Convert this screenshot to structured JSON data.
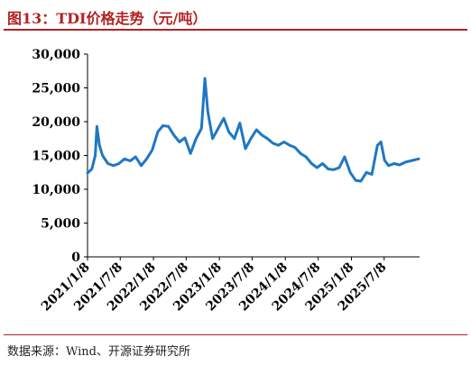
{
  "header": {
    "title": "图13：TDI价格走势（元/吨）"
  },
  "footer": {
    "source": "数据来源：Wind、开源证券研究所"
  },
  "colors": {
    "accent": "#b22222",
    "line": "#1f77c4"
  },
  "chart_data": {
    "type": "line",
    "title": "图13：TDI价格走势（元/吨）",
    "xlabel": "",
    "ylabel": "",
    "ylim": [
      0,
      30000
    ],
    "yticks": [
      0,
      5000,
      10000,
      15000,
      20000,
      25000,
      30000
    ],
    "ytick_labels": [
      "0",
      "5,000",
      "10,000",
      "15,000",
      "20,000",
      "25,000",
      "30,000"
    ],
    "xticks": [
      "2021-01-08",
      "2021-07-08",
      "2022-01-08",
      "2022-07-08",
      "2023-01-08",
      "2023-07-08",
      "2024-01-08",
      "2024-07-08",
      "2025-01-08",
      "2025-07-08"
    ],
    "xtick_labels": [
      "2021/1/8",
      "2021/7/8",
      "2022/1/8",
      "2022/7/8",
      "2023/1/8",
      "2023/7/8",
      "2024/1/8",
      "2024/7/8",
      "2025/1/8",
      "2025/7/8"
    ],
    "xlim": [
      "2021-01-08",
      "2026-01-20"
    ],
    "grid": false,
    "series": [
      {
        "points": [
          [
            "2021-01-08",
            12400
          ],
          [
            "2021-02-01",
            13000
          ],
          [
            "2021-02-20",
            15000
          ],
          [
            "2021-03-01",
            19300
          ],
          [
            "2021-03-15",
            16500
          ],
          [
            "2021-04-01",
            15000
          ],
          [
            "2021-05-01",
            13800
          ],
          [
            "2021-06-01",
            13500
          ],
          [
            "2021-07-01",
            13800
          ],
          [
            "2021-08-01",
            14500
          ],
          [
            "2021-09-01",
            14200
          ],
          [
            "2021-10-01",
            14800
          ],
          [
            "2021-11-01",
            13500
          ],
          [
            "2021-12-01",
            14500
          ],
          [
            "2022-01-01",
            15800
          ],
          [
            "2022-02-01",
            18500
          ],
          [
            "2022-03-01",
            19400
          ],
          [
            "2022-04-01",
            19300
          ],
          [
            "2022-05-01",
            18000
          ],
          [
            "2022-06-01",
            17000
          ],
          [
            "2022-07-01",
            17600
          ],
          [
            "2022-08-01",
            15300
          ],
          [
            "2022-09-01",
            17500
          ],
          [
            "2022-10-01",
            19000
          ],
          [
            "2022-10-20",
            26400
          ],
          [
            "2022-11-05",
            21500
          ],
          [
            "2022-12-01",
            17500
          ],
          [
            "2023-01-01",
            19000
          ],
          [
            "2023-02-01",
            20500
          ],
          [
            "2023-03-01",
            18500
          ],
          [
            "2023-04-01",
            17500
          ],
          [
            "2023-05-01",
            19800
          ],
          [
            "2023-06-01",
            16000
          ],
          [
            "2023-07-01",
            17500
          ],
          [
            "2023-08-01",
            18800
          ],
          [
            "2023-09-01",
            18000
          ],
          [
            "2023-10-01",
            17500
          ],
          [
            "2023-11-01",
            16800
          ],
          [
            "2023-12-01",
            16500
          ],
          [
            "2024-01-01",
            17000
          ],
          [
            "2024-02-01",
            16500
          ],
          [
            "2024-03-01",
            16200
          ],
          [
            "2024-04-01",
            15300
          ],
          [
            "2024-05-01",
            14800
          ],
          [
            "2024-06-01",
            13800
          ],
          [
            "2024-07-01",
            13200
          ],
          [
            "2024-08-01",
            13800
          ],
          [
            "2024-09-01",
            13000
          ],
          [
            "2024-10-01",
            12900
          ],
          [
            "2024-11-01",
            13200
          ],
          [
            "2024-12-01",
            14800
          ],
          [
            "2025-01-01",
            12500
          ],
          [
            "2025-02-01",
            11300
          ],
          [
            "2025-03-01",
            11200
          ],
          [
            "2025-04-01",
            12500
          ],
          [
            "2025-05-01",
            12200
          ],
          [
            "2025-06-01",
            16500
          ],
          [
            "2025-06-20",
            17000
          ],
          [
            "2025-07-10",
            14300
          ],
          [
            "2025-08-01",
            13500
          ],
          [
            "2025-09-01",
            13800
          ],
          [
            "2025-10-01",
            13600
          ],
          [
            "2025-11-01",
            14000
          ],
          [
            "2025-12-01",
            14200
          ],
          [
            "2026-01-15",
            14500
          ]
        ]
      }
    ]
  }
}
